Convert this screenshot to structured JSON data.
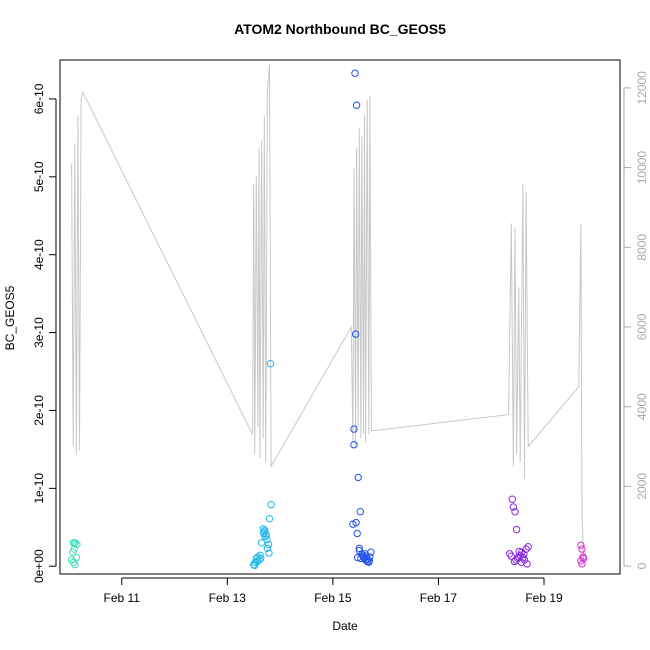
{
  "chart_data": {
    "type": "scatter",
    "title": "ATOM2 Northbound BC_GEOS5",
    "xlabel": "Date",
    "ylabel": "BC_GEOS5",
    "xlim": [
      9.83,
      20.44
    ],
    "ylim": [
      -1e-11,
      6.5e-10
    ],
    "y2lim": [
      -200,
      12700
    ],
    "x_ticks": [
      {
        "value": 11,
        "label": "Feb 11"
      },
      {
        "value": 13,
        "label": "Feb 13"
      },
      {
        "value": 15,
        "label": "Feb 15"
      },
      {
        "value": 17,
        "label": "Feb 17"
      },
      {
        "value": 19,
        "label": "Feb 19"
      }
    ],
    "y_ticks": [
      {
        "value": 0,
        "label": "0e+00"
      },
      {
        "value": 1e-10,
        "label": "1e-10"
      },
      {
        "value": 2e-10,
        "label": "2e-10"
      },
      {
        "value": 3e-10,
        "label": "3e-10"
      },
      {
        "value": 4e-10,
        "label": "4e-10"
      },
      {
        "value": 5e-10,
        "label": "5e-10"
      },
      {
        "value": 6e-10,
        "label": "6e-10"
      }
    ],
    "y2_ticks": [
      {
        "value": 0,
        "label": "0"
      },
      {
        "value": 2000,
        "label": "2000"
      },
      {
        "value": 4000,
        "label": "4000"
      },
      {
        "value": 6000,
        "label": "6000"
      },
      {
        "value": 8000,
        "label": "8000"
      },
      {
        "value": 10000,
        "label": "10000"
      },
      {
        "value": 12000,
        "label": "12000"
      }
    ],
    "grid": false,
    "altitude_color": "#c8c8c8",
    "altitude_line": {
      "x": [
        10.05,
        10.08,
        10.11,
        10.14,
        10.17,
        10.2,
        10.23,
        10.26,
        13.48,
        13.5,
        13.52,
        13.55,
        13.58,
        13.6,
        13.62,
        13.65,
        13.68,
        13.7,
        13.73,
        13.76,
        13.8,
        13.83,
        15.35,
        15.38,
        15.4,
        15.43,
        15.45,
        15.48,
        15.5,
        15.53,
        15.55,
        15.58,
        15.6,
        15.62,
        15.65,
        15.68,
        15.7,
        15.73,
        15.75,
        15.78,
        18.33,
        18.38,
        18.42,
        18.45,
        18.48,
        18.52,
        18.55,
        18.58,
        18.6,
        18.63,
        18.66,
        18.7,
        19.66,
        19.7,
        19.72,
        19.75
      ],
      "y": [
        10100,
        3000,
        10600,
        2800,
        11300,
        2900,
        11700,
        11900,
        3300,
        9600,
        2800,
        9800,
        3500,
        10500,
        2700,
        10700,
        3200,
        11300,
        2600,
        11900,
        12600,
        2500,
        6000,
        3100,
        10000,
        3000,
        10500,
        3500,
        11000,
        3200,
        10800,
        3300,
        11300,
        3100,
        11700,
        3300,
        11800,
        3400,
        3400,
        3400,
        3800,
        8600,
        2500,
        8500,
        2800,
        7000,
        2600,
        6900,
        9600,
        2200,
        9400,
        3000,
        4500,
        8600,
        1300,
        200
      ]
    },
    "series": [
      {
        "color": "#40e0c0",
        "x": [
          10.08,
          10.1,
          10.12,
          10.15,
          10.1,
          10.07,
          10.05,
          10.09,
          10.11,
          10.14
        ],
        "y": [
          3e-11,
          2.9e-11,
          3e-11,
          2.8e-11,
          2.2e-11,
          1.8e-11,
          8e-12,
          5e-12,
          2e-12,
          1.1e-11
        ]
      },
      {
        "color": "#20b8e8",
        "x": [
          13.5,
          13.53,
          13.55,
          13.58,
          13.6,
          13.62,
          13.65,
          13.68,
          13.7,
          13.72,
          13.74,
          13.76,
          13.78,
          13.8,
          13.83,
          13.52,
          13.57,
          13.63,
          13.69,
          13.71,
          13.75,
          13.79,
          13.82
        ],
        "y": [
          2e-12,
          5e-12,
          1e-11,
          1.2e-11,
          8e-12,
          1.4e-11,
          3e-11,
          4.8e-11,
          4.4e-11,
          3.8e-11,
          4e-11,
          2.3e-11,
          2.8e-11,
          6.1e-11,
          7.9e-11,
          1e-12,
          6e-12,
          1e-11,
          4.2e-11,
          4.6e-11,
          3.4e-11,
          1.7e-11,
          2.6e-10
        ]
      },
      {
        "color": "#2050e8",
        "x": [
          15.42,
          15.45,
          15.48,
          15.4,
          15.43,
          15.38,
          15.44,
          15.52,
          15.46,
          15.5,
          15.55,
          15.58,
          15.6,
          15.62,
          15.65,
          15.68,
          15.7,
          15.72,
          15.5,
          15.53,
          15.57,
          15.61,
          15.66,
          15.69,
          15.4,
          15.47,
          15.63
        ],
        "y": [
          6.33e-10,
          5.92e-10,
          1.14e-10,
          1.76e-10,
          2.98e-10,
          5.4e-11,
          5.6e-11,
          7e-11,
          4.2e-11,
          2e-11,
          1.5e-11,
          1.2e-11,
          1e-11,
          8e-12,
          6e-12,
          5e-12,
          1.2e-11,
          1.8e-11,
          2.3e-11,
          1e-11,
          1.4e-11,
          1.6e-11,
          9e-12,
          7e-12,
          1.56e-10,
          1.1e-11,
          1.3e-11
        ]
      },
      {
        "color": "#8a2be2",
        "x": [
          18.35,
          18.38,
          18.4,
          18.42,
          18.45,
          18.48,
          18.5,
          18.52,
          18.55,
          18.58,
          18.6,
          18.63,
          18.66,
          18.7,
          18.44,
          18.47,
          18.53,
          18.57,
          18.62,
          18.68
        ],
        "y": [
          1.6e-11,
          1.3e-11,
          8.6e-11,
          7.6e-11,
          7e-11,
          4.7e-11,
          1e-11,
          1.2e-11,
          1.4e-11,
          1.8e-11,
          1.1e-11,
          8e-12,
          2.2e-11,
          2.5e-11,
          6e-12,
          8e-12,
          1.9e-11,
          5e-12,
          1.5e-11,
          3e-12
        ]
      },
      {
        "color": "#d030d0",
        "x": [
          19.7,
          19.72,
          19.74,
          19.7,
          19.72,
          19.75
        ],
        "y": [
          2.7e-11,
          2.2e-11,
          1.2e-11,
          7e-12,
          3e-12,
          1e-11
        ]
      }
    ]
  }
}
